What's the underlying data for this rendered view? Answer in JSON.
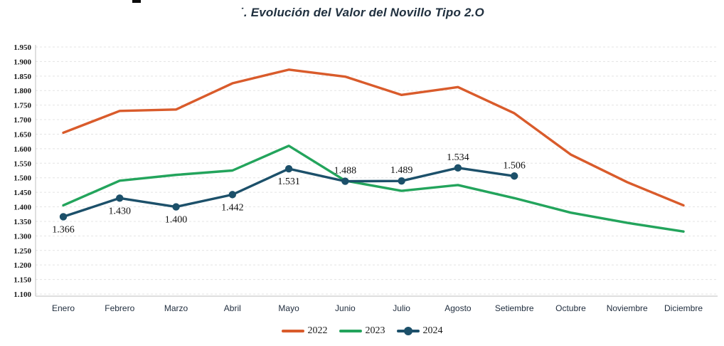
{
  "title": "˙. Evolución del Valor del Novillo Tipo 2.O",
  "chart_data": {
    "type": "line",
    "title": "˙. Evolución del Valor del Novillo Tipo 2.O",
    "categories": [
      "Enero",
      "Febrero",
      "Marzo",
      "Abril",
      "Mayo",
      "Junio",
      "Julio",
      "Agosto",
      "Setiembre",
      "Octubre",
      "Noviembre",
      "Diciembre"
    ],
    "y_axis": {
      "ticks": [
        "1.950",
        "1.900",
        "1.850",
        "1.800",
        "1.750",
        "1.700",
        "1.650",
        "1.600",
        "1.550",
        "1.500",
        "1.450",
        "1.400",
        "1.350",
        "1.300",
        "1.250",
        "1.200",
        "1.150",
        "1.100"
      ],
      "min": 1.1,
      "max": 1.95,
      "grid": "dashed"
    },
    "legend_position": "bottom",
    "series": [
      {
        "name": "2022",
        "color": "#D95B2B",
        "marker": false,
        "values": [
          1.655,
          1.73,
          1.735,
          1.825,
          1.872,
          1.848,
          1.785,
          1.812,
          1.722,
          1.58,
          1.485,
          1.405
        ]
      },
      {
        "name": "2023",
        "color": "#23A45C",
        "marker": false,
        "values": [
          1.405,
          1.49,
          1.51,
          1.525,
          1.61,
          1.49,
          1.455,
          1.475,
          1.43,
          1.38,
          1.345,
          1.315
        ]
      },
      {
        "name": "2024",
        "color": "#1C506A",
        "marker": true,
        "values": [
          1.366,
          1.43,
          1.4,
          1.442,
          1.531,
          1.488,
          1.489,
          1.534,
          1.506
        ],
        "data_labels": [
          "1.366",
          "1.430",
          "1.400",
          "1.442",
          "1.531",
          "1.488",
          "1.489",
          "1.534",
          "1.506"
        ],
        "label_positions": [
          "below",
          "below",
          "below",
          "below",
          "below",
          "above",
          "above",
          "above",
          "above"
        ]
      }
    ]
  }
}
